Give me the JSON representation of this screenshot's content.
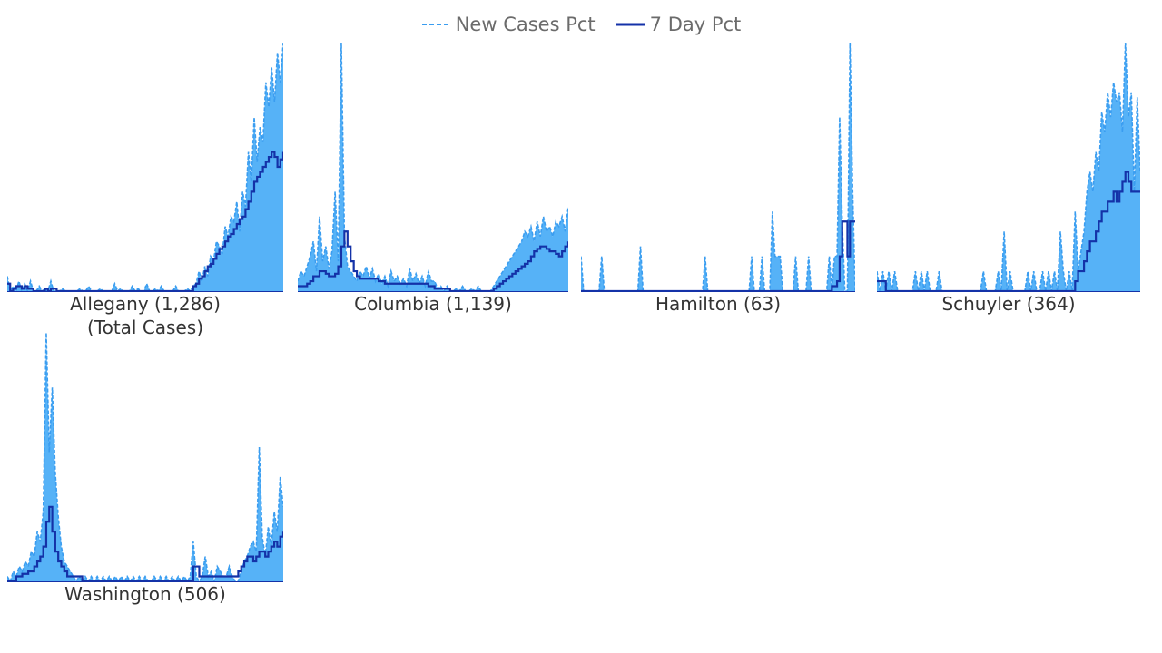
{
  "legend": {
    "items": [
      {
        "label": "New Cases Pct",
        "color": "#3a9df0",
        "style": "dashed"
      },
      {
        "label": "7 Day Pct",
        "color": "#1432a8",
        "style": "solid"
      }
    ]
  },
  "colors": {
    "area": "#56b2f7",
    "dashed_line": "#3a9df0",
    "avg_line": "#1432a8"
  },
  "chart_data": [
    {
      "type": "area",
      "title": "Allegany (1,286)",
      "subtitle": "(Total Cases)",
      "series": [
        {
          "name": "New Cases Pct",
          "values": [
            6,
            0,
            2,
            0,
            4,
            0,
            3,
            0,
            4,
            0,
            0,
            2,
            0,
            1,
            0,
            4,
            0,
            0,
            0,
            1,
            0,
            0,
            0,
            0,
            0,
            1,
            0,
            0,
            2,
            0,
            0,
            0,
            1,
            0,
            0,
            0,
            0,
            3,
            0,
            1,
            0,
            0,
            0,
            2,
            0,
            1,
            0,
            0,
            3,
            0,
            0,
            1,
            0,
            2,
            0,
            0,
            0,
            0,
            2,
            0,
            0,
            0,
            1,
            0,
            2,
            3,
            8,
            4,
            10,
            6,
            14,
            12,
            20,
            18,
            15,
            26,
            22,
            30,
            28,
            36,
            24,
            40,
            34,
            56,
            44,
            70,
            52,
            66,
            60,
            84,
            74,
            90,
            76,
            96,
            84,
            100
          ]
        },
        {
          "name": "7 Day Pct",
          "values": [
            3,
            0,
            1,
            2,
            2,
            1,
            2,
            1,
            1,
            0,
            0,
            0,
            0,
            1,
            0,
            1,
            1,
            0,
            0,
            0,
            0,
            0,
            0,
            0,
            0,
            0,
            0,
            0,
            0,
            0,
            0,
            0,
            0,
            0,
            0,
            0,
            0,
            0,
            0,
            0,
            0,
            0,
            0,
            0,
            0,
            0,
            0,
            0,
            0,
            0,
            0,
            0,
            0,
            0,
            0,
            0,
            0,
            0,
            0,
            0,
            0,
            0,
            0,
            0,
            2,
            3,
            5,
            6,
            8,
            10,
            11,
            13,
            15,
            17,
            18,
            20,
            22,
            23,
            25,
            27,
            29,
            30,
            33,
            36,
            40,
            44,
            46,
            48,
            50,
            52,
            54,
            56,
            54,
            50,
            53,
            56
          ]
        }
      ],
      "ylim": [
        0,
        100
      ]
    },
    {
      "type": "area",
      "title": "Columbia (1,139)",
      "series": [
        {
          "name": "New Cases Pct",
          "values": [
            4,
            8,
            6,
            10,
            14,
            20,
            8,
            30,
            12,
            18,
            9,
            16,
            40,
            12,
            100,
            22,
            10,
            8,
            6,
            4,
            8,
            6,
            10,
            5,
            9,
            4,
            7,
            3,
            6,
            2,
            8,
            4,
            6,
            3,
            5,
            2,
            9,
            4,
            7,
            3,
            6,
            2,
            8,
            4,
            4,
            1,
            2,
            0,
            2,
            0,
            0,
            1,
            0,
            2,
            0,
            0,
            1,
            0,
            2,
            0,
            0,
            0,
            0,
            2,
            4,
            6,
            8,
            10,
            12,
            14,
            16,
            18,
            20,
            24,
            22,
            26,
            20,
            28,
            22,
            30,
            24,
            26,
            22,
            28,
            26,
            30,
            24,
            34
          ]
        },
        {
          "name": "7 Day Pct",
          "values": [
            2,
            2,
            2,
            3,
            4,
            6,
            6,
            8,
            8,
            7,
            6,
            6,
            7,
            10,
            18,
            24,
            18,
            12,
            8,
            6,
            5,
            5,
            5,
            5,
            5,
            5,
            4,
            4,
            3,
            3,
            3,
            3,
            3,
            3,
            3,
            3,
            3,
            3,
            3,
            3,
            3,
            3,
            2,
            2,
            1,
            1,
            1,
            1,
            1,
            0,
            0,
            0,
            0,
            0,
            0,
            0,
            0,
            0,
            0,
            0,
            0,
            0,
            0,
            1,
            2,
            3,
            4,
            5,
            6,
            7,
            8,
            9,
            10,
            11,
            12,
            14,
            16,
            17,
            18,
            18,
            17,
            16,
            16,
            15,
            14,
            16,
            18,
            20
          ]
        }
      ],
      "ylim": [
        0,
        100
      ]
    },
    {
      "type": "area",
      "title": "Hamilton (63)",
      "series": [
        {
          "name": "New Cases Pct",
          "values": [
            14,
            0,
            0,
            0,
            0,
            0,
            0,
            0,
            14,
            0,
            0,
            0,
            0,
            0,
            0,
            0,
            0,
            0,
            0,
            0,
            0,
            0,
            0,
            18,
            0,
            0,
            0,
            0,
            0,
            0,
            0,
            0,
            0,
            0,
            0,
            0,
            0,
            0,
            0,
            0,
            0,
            0,
            0,
            0,
            0,
            0,
            0,
            0,
            14,
            0,
            0,
            0,
            0,
            0,
            0,
            0,
            0,
            0,
            0,
            0,
            0,
            0,
            0,
            0,
            0,
            0,
            14,
            0,
            0,
            0,
            14,
            0,
            0,
            0,
            32,
            14,
            14,
            14,
            0,
            0,
            0,
            0,
            0,
            14,
            0,
            0,
            0,
            0,
            14,
            0,
            0,
            0,
            0,
            0,
            0,
            0,
            14,
            0,
            14,
            14,
            70,
            28,
            0,
            0,
            100,
            42,
            0
          ]
        },
        {
          "name": "7 Day Pct",
          "values": [
            0,
            0,
            0,
            0,
            0,
            0,
            0,
            0,
            0,
            0,
            0,
            0,
            0,
            0,
            0,
            0,
            0,
            0,
            0,
            0,
            0,
            0,
            0,
            0,
            0,
            0,
            0,
            0,
            0,
            0,
            0,
            0,
            0,
            0,
            0,
            0,
            0,
            0,
            0,
            0,
            0,
            0,
            0,
            0,
            0,
            0,
            0,
            0,
            0,
            0,
            0,
            0,
            0,
            0,
            0,
            0,
            0,
            0,
            0,
            0,
            0,
            0,
            0,
            0,
            0,
            0,
            0,
            0,
            0,
            0,
            0,
            0,
            0,
            0,
            0,
            0,
            0,
            0,
            0,
            0,
            0,
            0,
            0,
            0,
            0,
            0,
            0,
            0,
            0,
            0,
            0,
            0,
            0,
            0,
            0,
            0,
            0,
            2,
            2,
            4,
            14,
            28,
            28,
            14,
            28,
            28,
            28
          ]
        }
      ],
      "ylim": [
        0,
        100
      ]
    },
    {
      "type": "area",
      "title": "Schuyler (364)",
      "series": [
        {
          "name": "New Cases Pct",
          "values": [
            8,
            0,
            8,
            0,
            8,
            0,
            8,
            0,
            0,
            0,
            0,
            0,
            0,
            8,
            0,
            8,
            0,
            8,
            0,
            0,
            0,
            8,
            0,
            0,
            0,
            0,
            0,
            0,
            0,
            0,
            0,
            0,
            0,
            0,
            0,
            0,
            8,
            0,
            0,
            0,
            0,
            8,
            0,
            24,
            0,
            8,
            0,
            0,
            0,
            0,
            0,
            8,
            0,
            8,
            0,
            0,
            8,
            0,
            8,
            0,
            8,
            0,
            24,
            8,
            0,
            8,
            0,
            32,
            8,
            16,
            24,
            40,
            48,
            40,
            56,
            48,
            72,
            64,
            80,
            70,
            84,
            76,
            80,
            64,
            100,
            70,
            80,
            40,
            78,
            48
          ]
        },
        {
          "name": "7 Day Pct",
          "values": [
            4,
            4,
            4,
            0,
            0,
            0,
            0,
            0,
            0,
            0,
            0,
            0,
            0,
            0,
            0,
            0,
            0,
            0,
            0,
            0,
            0,
            0,
            0,
            0,
            0,
            0,
            0,
            0,
            0,
            0,
            0,
            0,
            0,
            0,
            0,
            0,
            0,
            0,
            0,
            0,
            0,
            0,
            0,
            0,
            0,
            0,
            0,
            0,
            0,
            0,
            0,
            0,
            0,
            0,
            0,
            0,
            0,
            0,
            0,
            0,
            0,
            0,
            0,
            0,
            0,
            0,
            0,
            4,
            8,
            8,
            12,
            16,
            20,
            20,
            24,
            28,
            32,
            32,
            36,
            36,
            40,
            36,
            40,
            44,
            48,
            44,
            40,
            40,
            40,
            40
          ]
        }
      ],
      "ylim": [
        0,
        100
      ]
    },
    {
      "type": "area",
      "title": "Washington (506)",
      "series": [
        {
          "name": "New Cases Pct",
          "values": [
            2,
            0,
            4,
            2,
            6,
            4,
            8,
            6,
            12,
            10,
            20,
            16,
            28,
            100,
            52,
            78,
            44,
            26,
            14,
            8,
            6,
            4,
            2,
            0,
            2,
            0,
            2,
            0,
            2,
            0,
            2,
            0,
            2,
            0,
            2,
            0,
            2,
            0,
            2,
            0,
            2,
            0,
            2,
            0,
            2,
            0,
            2,
            0,
            0,
            2,
            0,
            2,
            0,
            2,
            0,
            2,
            0,
            2,
            0,
            2,
            0,
            2,
            16,
            2,
            0,
            2,
            10,
            2,
            4,
            0,
            6,
            4,
            2,
            2,
            6,
            2,
            0,
            0,
            4,
            8,
            10,
            14,
            16,
            12,
            54,
            18,
            10,
            22,
            14,
            28,
            20,
            42,
            30
          ]
        },
        {
          "name": "7 Day Pct",
          "values": [
            0,
            0,
            0,
            2,
            2,
            3,
            3,
            4,
            4,
            6,
            8,
            10,
            14,
            24,
            30,
            20,
            12,
            8,
            6,
            4,
            2,
            2,
            2,
            2,
            2,
            0,
            0,
            0,
            0,
            0,
            0,
            0,
            0,
            0,
            0,
            0,
            0,
            0,
            0,
            0,
            0,
            0,
            0,
            0,
            0,
            0,
            0,
            0,
            0,
            0,
            0,
            0,
            0,
            0,
            0,
            0,
            0,
            0,
            0,
            0,
            0,
            0,
            6,
            6,
            2,
            2,
            2,
            2,
            2,
            2,
            2,
            2,
            2,
            2,
            2,
            2,
            2,
            4,
            6,
            8,
            10,
            10,
            8,
            10,
            12,
            12,
            10,
            12,
            14,
            16,
            14,
            18,
            20
          ]
        }
      ],
      "ylim": [
        0,
        100
      ]
    }
  ]
}
